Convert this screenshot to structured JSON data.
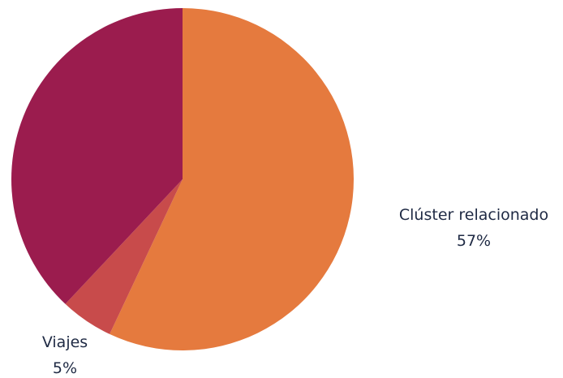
{
  "chart_data": {
    "type": "pie",
    "title": "",
    "slices": [
      {
        "label": "Clúster relacionado",
        "value": 57,
        "display": "57%",
        "color": "#E57A3E"
      },
      {
        "label": "Viajes",
        "value": 5,
        "display": "5%",
        "color": "#C84B4B"
      },
      {
        "label": "",
        "value": 38,
        "display": "",
        "color": "#9B1C4E"
      }
    ],
    "start_angle_deg": 0,
    "direction": "clockwise",
    "legend": "none"
  }
}
